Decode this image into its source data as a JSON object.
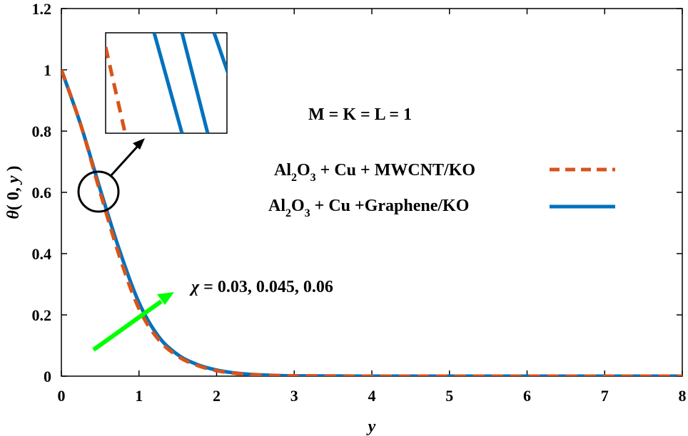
{
  "chart_data": {
    "type": "line",
    "title": "",
    "xlabel": "y",
    "ylabel_parts": [
      "θ",
      "( 0, ",
      "y",
      " )"
    ],
    "xlim": [
      0,
      8
    ],
    "ylim": [
      0,
      1.2
    ],
    "xticks": [
      "0",
      "1",
      "2",
      "3",
      "4",
      "5",
      "6",
      "7",
      "8"
    ],
    "yticks": [
      "0",
      "0.2",
      "0.4",
      "0.6",
      "0.8",
      "1",
      "1.2"
    ],
    "grid": false,
    "legend_position": "top-right",
    "series": [
      {
        "name": "Al2O3 + Cu + MWCNT/KO",
        "name_parts": [
          "Al",
          "2",
          "O",
          "3",
          " + Cu + MWCNT/KO"
        ],
        "style": "dashed",
        "color": "#D95319",
        "x": [
          0,
          0.25,
          0.5,
          0.75,
          1.0,
          1.25,
          1.5,
          1.75,
          2.0,
          2.25,
          2.5,
          3.0,
          4.0,
          5.0,
          6.0,
          7.0,
          8.0
        ],
        "y": [
          1.0,
          0.82,
          0.6,
          0.39,
          0.22,
          0.12,
          0.065,
          0.035,
          0.018,
          0.009,
          0.004,
          0.001,
          0,
          0,
          0,
          0,
          0
        ]
      },
      {
        "name": "Al2O3 + Cu +Graphene/KO",
        "name_parts": [
          "Al",
          "2",
          "O",
          "3",
          " + Cu +Graphene/KO"
        ],
        "style": "solid",
        "color": "#0072BD",
        "x": [
          0,
          0.25,
          0.5,
          0.75,
          1.0,
          1.25,
          1.5,
          1.75,
          2.0,
          2.25,
          2.5,
          3.0,
          4.0,
          5.0,
          6.0,
          7.0,
          8.0
        ],
        "y": [
          1.0,
          0.82,
          0.61,
          0.41,
          0.24,
          0.13,
          0.07,
          0.038,
          0.02,
          0.01,
          0.005,
          0.001,
          0,
          0,
          0,
          0,
          0
        ]
      }
    ],
    "annotations": {
      "params": "M = K = L = 1",
      "chi_symbol": "χ",
      "chi_values": " = 0.03, 0.045, 0.06"
    },
    "colors": {
      "arrow": "#00FF00",
      "axis": "#000000"
    }
  }
}
